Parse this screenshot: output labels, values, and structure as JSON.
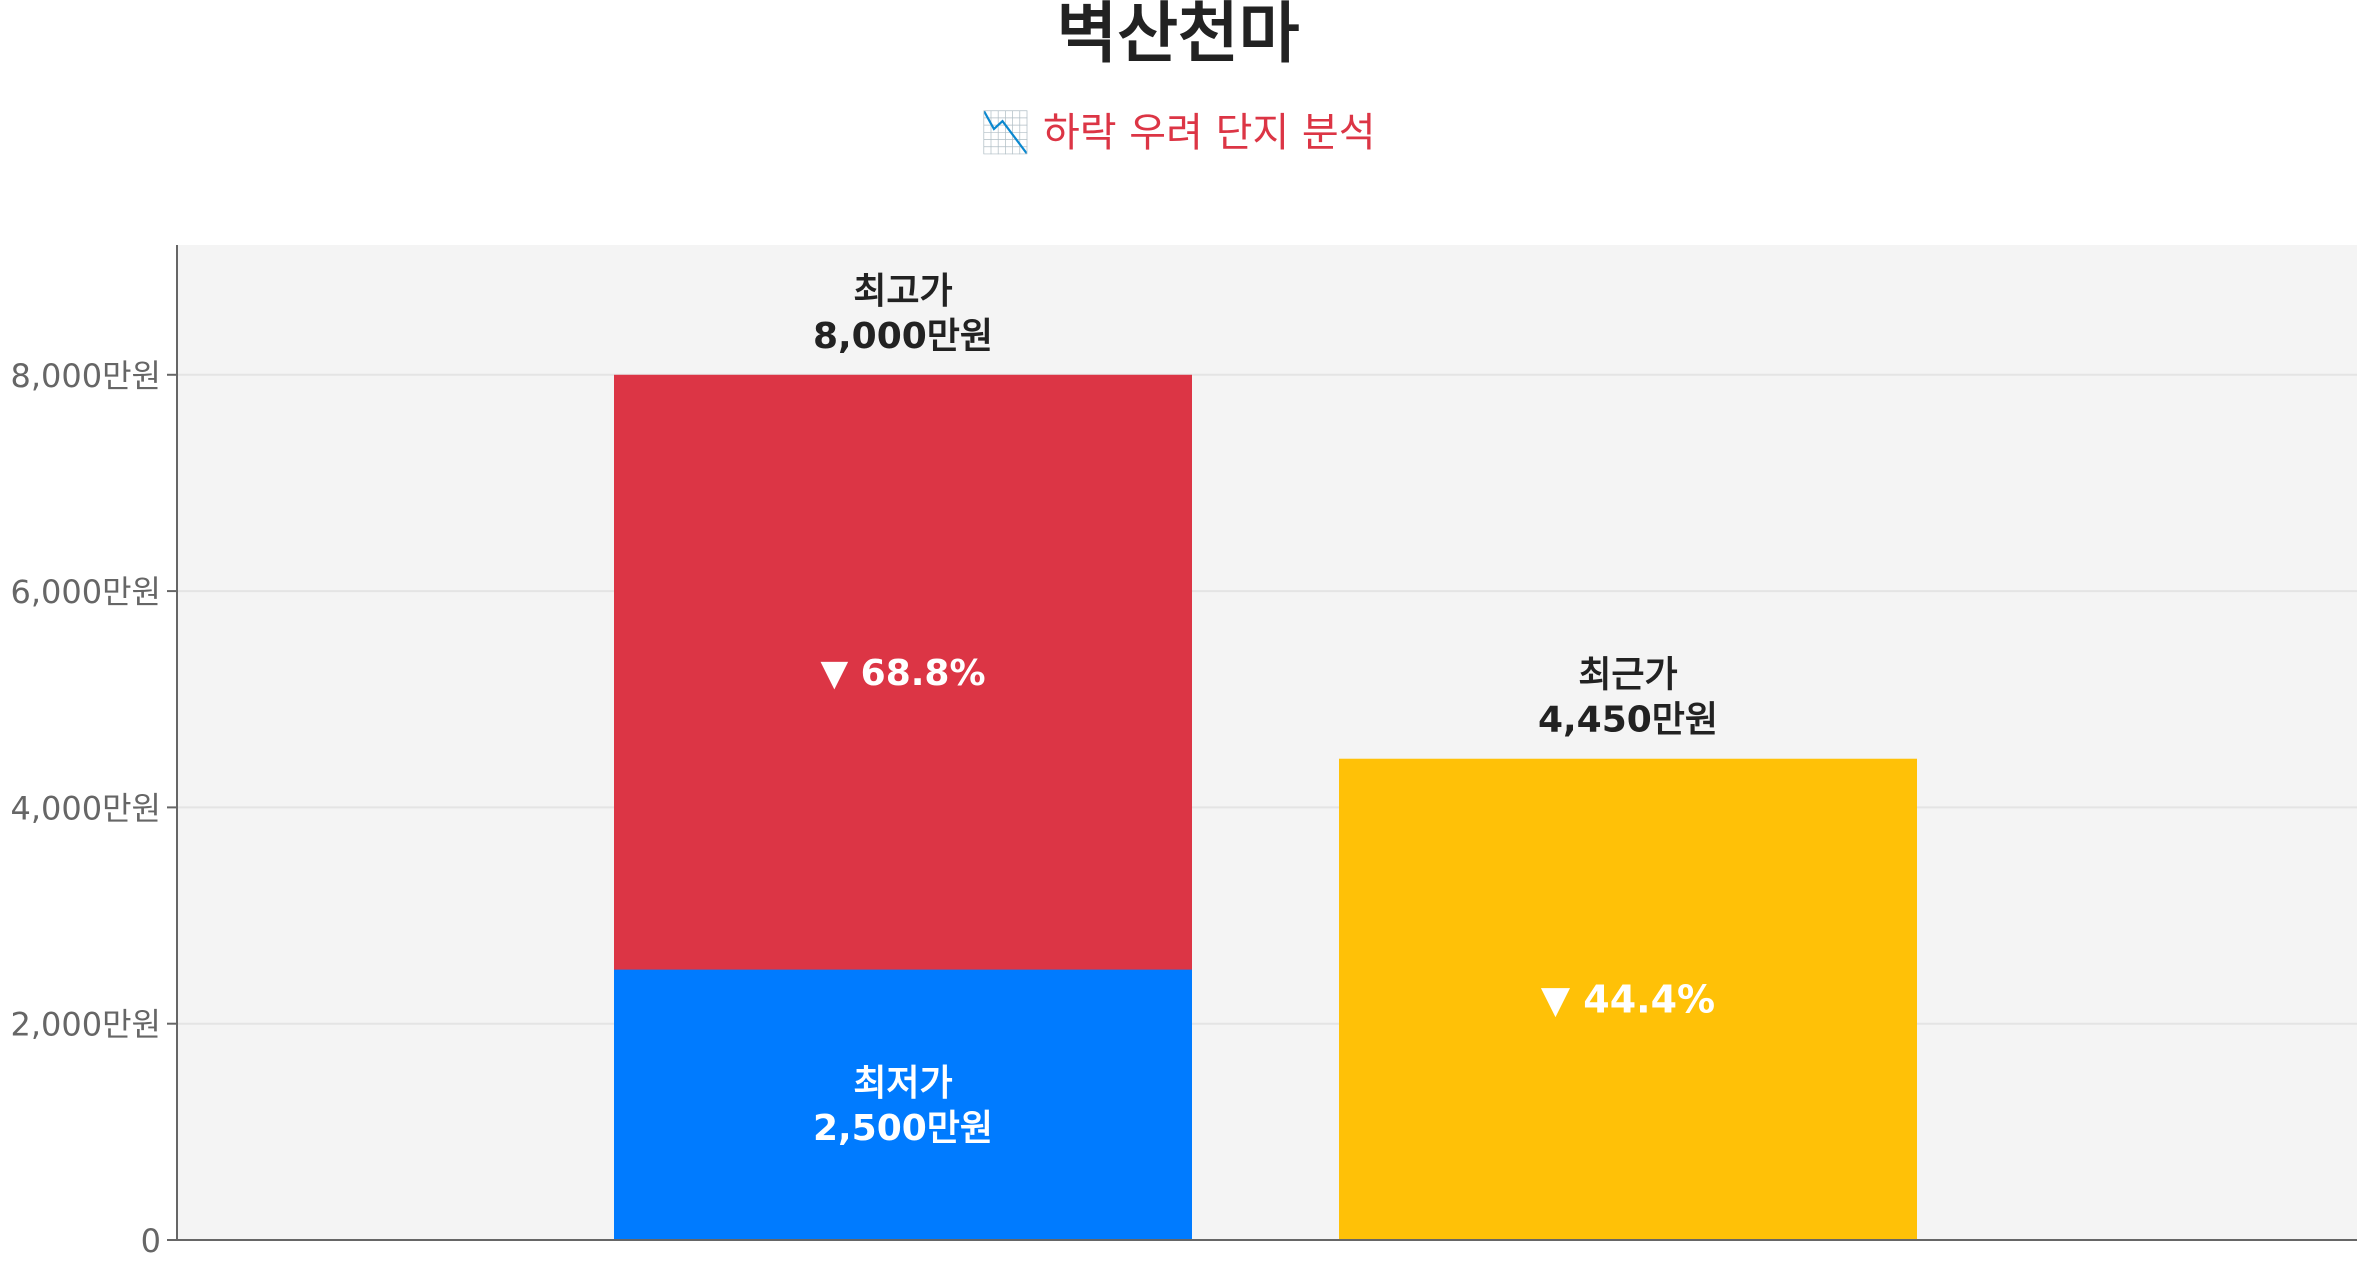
{
  "chart_data": {
    "type": "bar",
    "title": "벽산천마",
    "subtitle": "📉 하락 우려 단지 분석",
    "unit_suffix": "만원",
    "ylim": [
      0,
      9200
    ],
    "yticks": [
      0,
      2000,
      4000,
      6000,
      8000
    ],
    "ytick_labels": [
      "0",
      "2,000만원",
      "4,000만원",
      "6,000만원",
      "8,000만원"
    ],
    "grid": true,
    "bars": [
      {
        "name": "최고가",
        "value": 8000,
        "value_label": "8,000만원",
        "color": "#dc3545",
        "label_position": "above"
      },
      {
        "name": "최저가",
        "value": 2500,
        "value_label": "2,500만원",
        "color": "#007bff",
        "label_position": "inside"
      },
      {
        "name": "최근가",
        "value": 4450,
        "value_label": "4,450만원",
        "color": "#ffc107",
        "label_position": "above"
      }
    ],
    "annotations": [
      {
        "text": "▼ 68.8%",
        "from_value": 8000,
        "to_value": 2500,
        "bar": 0
      },
      {
        "text": "▼ 44.4%",
        "from_value": 8000,
        "to_value": 4450,
        "bar": 1
      }
    ]
  },
  "colors": {
    "plot_background": "#f4f4f4",
    "axis": "#666666",
    "tick_text": "#666666",
    "label_text": "#222222",
    "subtitle": "#dc3545",
    "inside_text": "#ffffff"
  }
}
